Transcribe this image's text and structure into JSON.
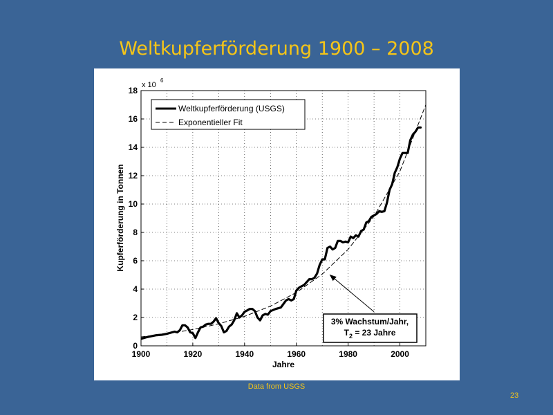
{
  "slide": {
    "title": "Weltkupferförderung 1900 – 2008",
    "footnote": "Data from  USGS",
    "page_number": "23",
    "background_color": "#3A6496",
    "accent_color": "#F5C518"
  },
  "chart_data": {
    "type": "line",
    "title": "",
    "xlabel": "Jahre",
    "ylabel": "Kupferförderung in Tonnen",
    "y_multiplier_label": "x 10",
    "y_multiplier_exponent": "6",
    "xlim": [
      1900,
      2010
    ],
    "ylim": [
      0,
      18
    ],
    "xticks": [
      1900,
      1920,
      1940,
      1960,
      1980,
      2000
    ],
    "yticks": [
      0,
      2,
      4,
      6,
      8,
      10,
      12,
      14,
      16,
      18
    ],
    "grid": true,
    "legend_position": "top-left",
    "series": [
      {
        "name": "Weltkupferförderung (USGS)",
        "style": "solid-thick",
        "color": "#000000",
        "x": [
          1900,
          1902,
          1904,
          1906,
          1908,
          1910,
          1912,
          1913,
          1914,
          1915,
          1916,
          1917,
          1918,
          1919,
          1920,
          1921,
          1922,
          1923,
          1924,
          1925,
          1926,
          1927,
          1928,
          1929,
          1930,
          1931,
          1932,
          1933,
          1934,
          1935,
          1936,
          1937,
          1938,
          1939,
          1940,
          1941,
          1942,
          1943,
          1944,
          1945,
          1946,
          1947,
          1948,
          1949,
          1950,
          1952,
          1954,
          1955,
          1956,
          1957,
          1958,
          1959,
          1960,
          1961,
          1962,
          1963,
          1964,
          1965,
          1966,
          1967,
          1968,
          1969,
          1970,
          1971,
          1972,
          1973,
          1974,
          1975,
          1976,
          1977,
          1978,
          1979,
          1980,
          1981,
          1982,
          1983,
          1984,
          1985,
          1986,
          1987,
          1988,
          1989,
          1990,
          1991,
          1992,
          1993,
          1994,
          1995,
          1996,
          1997,
          1998,
          1999,
          2000,
          2001,
          2002,
          2003,
          2004,
          2005,
          2006,
          2007,
          2008
        ],
        "y": [
          0.5,
          0.6,
          0.68,
          0.75,
          0.78,
          0.85,
          0.95,
          1.0,
          0.95,
          1.1,
          1.45,
          1.45,
          1.3,
          0.95,
          0.9,
          0.55,
          0.95,
          1.3,
          1.35,
          1.5,
          1.55,
          1.55,
          1.7,
          1.95,
          1.6,
          1.4,
          0.95,
          1.05,
          1.35,
          1.5,
          1.8,
          2.3,
          2.0,
          2.15,
          2.4,
          2.5,
          2.6,
          2.6,
          2.45,
          2.0,
          1.8,
          2.15,
          2.25,
          2.2,
          2.45,
          2.6,
          2.7,
          2.95,
          3.2,
          3.3,
          3.2,
          3.3,
          3.9,
          4.1,
          4.2,
          4.3,
          4.5,
          4.7,
          4.7,
          4.8,
          5.1,
          5.7,
          6.1,
          6.1,
          6.9,
          7.0,
          6.8,
          6.9,
          7.4,
          7.4,
          7.3,
          7.35,
          7.3,
          7.7,
          7.6,
          7.8,
          7.7,
          8.1,
          8.2,
          8.7,
          8.8,
          9.1,
          9.2,
          9.3,
          9.5,
          9.45,
          9.5,
          10.1,
          11.0,
          11.4,
          12.2,
          12.6,
          13.2,
          13.6,
          13.6,
          13.6,
          14.5,
          14.9,
          15.1,
          15.4,
          15.4
        ]
      },
      {
        "name": "Exponentieller Fit",
        "style": "dashed",
        "color": "#000000",
        "x": [
          1900,
          1910,
          1920,
          1930,
          1940,
          1950,
          1960,
          1970,
          1980,
          1990,
          2000,
          2010
        ],
        "y": [
          0.63,
          0.85,
          1.15,
          1.55,
          2.08,
          2.8,
          3.76,
          5.06,
          6.8,
          9.14,
          12.3,
          17.0
        ]
      }
    ],
    "annotation": {
      "line1": "3% Wachstum/Jahr,",
      "line2_prefix": "T",
      "line2_sub": "2",
      "line2_suffix": " = 23 Jahre",
      "arrow_target": [
        1973,
        5.0
      ],
      "arrow_source": [
        1990,
        2.4
      ]
    }
  }
}
